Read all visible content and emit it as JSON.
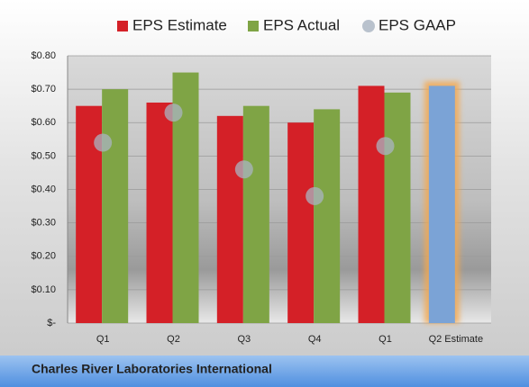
{
  "chart_data": {
    "type": "bar",
    "title": "Charles River Laboratories International",
    "categories": [
      "Q1",
      "Q2",
      "Q3",
      "Q4",
      "Q1",
      "Q2 Estimate"
    ],
    "series": [
      {
        "name": "EPS Estimate",
        "color": "#d42027",
        "colors": [
          "#d42027",
          "#d42027",
          "#d42027",
          "#d42027",
          "#d42027",
          "#7ba3d6"
        ],
        "values": [
          0.65,
          0.66,
          0.62,
          0.6,
          0.71,
          0.71
        ]
      },
      {
        "name": "EPS Actual",
        "color": "#7fa445",
        "values": [
          0.7,
          0.75,
          0.65,
          0.64,
          0.69,
          null
        ]
      },
      {
        "name": "EPS GAAP",
        "color": "#a9b4c2",
        "marker": "circle",
        "values": [
          0.54,
          0.63,
          0.46,
          0.38,
          0.53,
          null
        ]
      }
    ],
    "ylim": [
      0,
      0.8
    ],
    "yticks": [
      {
        "value": 0,
        "label": "$-"
      },
      {
        "value": 0.1,
        "label": "$0.10"
      },
      {
        "value": 0.2,
        "label": "$0.20"
      },
      {
        "value": 0.3,
        "label": "$0.30"
      },
      {
        "value": 0.4,
        "label": "$0.40"
      },
      {
        "value": 0.5,
        "label": "$0.50"
      },
      {
        "value": 0.6,
        "label": "$0.60"
      },
      {
        "value": 0.7,
        "label": "$0.70"
      },
      {
        "value": 0.8,
        "label": "$0.80"
      }
    ],
    "grid": true,
    "legend": "top"
  }
}
